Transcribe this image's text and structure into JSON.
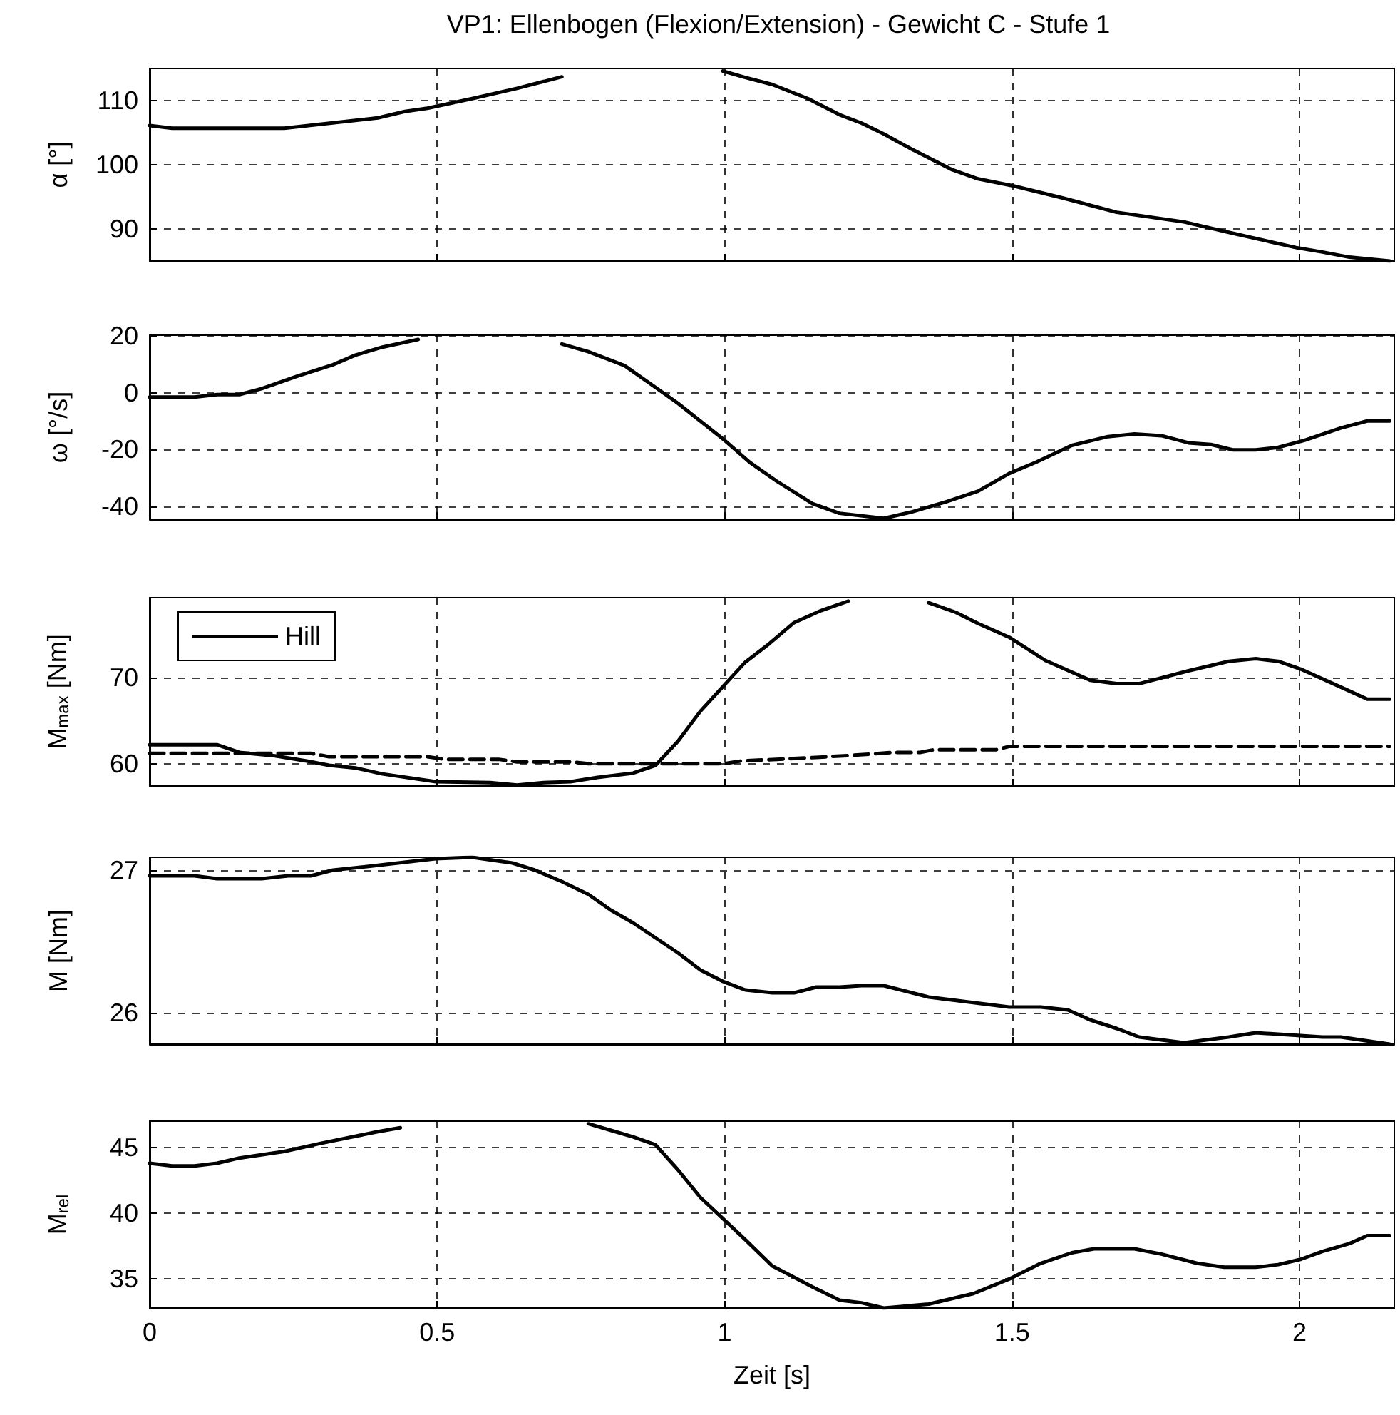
{
  "chart_data": [
    {
      "type": "line",
      "title": "VP1: Ellenbogen (Flexion/Extension) - Gewicht C - Stufe 1",
      "ylabel": "α [°]",
      "xlim": [
        0,
        2.165
      ],
      "xticks": [
        0,
        0.5,
        1,
        1.5,
        2
      ],
      "ylim": [
        85,
        115
      ],
      "yticks": [
        90,
        100,
        110
      ],
      "tick_labels": "y",
      "grid": true,
      "legend": false,
      "marker": "none",
      "line_style": "solid",
      "x": [
        0,
        0.039,
        0.234,
        0.296,
        0.397,
        0.444,
        0.483,
        0.561,
        0.639,
        0.717,
        0.826,
        0.919,
        0.997,
        1.036,
        1.083,
        1.145,
        1.2,
        1.238,
        1.277,
        1.324,
        1.394,
        1.441,
        1.503,
        1.589,
        1.682,
        1.799,
        1.885,
        1.994,
        2.04,
        2.087,
        2.157
      ],
      "series": [
        {
          "color": "#000000",
          "values": [
            106.1,
            105.7,
            105.7,
            106.3,
            107.3,
            108.3,
            108.8,
            110.3,
            111.9,
            113.7,
            null,
            null,
            114.6,
            113.6,
            112.5,
            110.3,
            107.8,
            106.5,
            104.8,
            102.5,
            99.3,
            97.8,
            96.7,
            94.8,
            92.6,
            91.1,
            89.3,
            87.1,
            86.4,
            85.6,
            85
          ]
        }
      ]
    },
    {
      "type": "line",
      "ylabel": "ω [°/s]",
      "xlim": [
        0,
        2.165
      ],
      "xticks": [
        0,
        0.5,
        1,
        1.5,
        2
      ],
      "ylim": [
        -44.5,
        20.3
      ],
      "yticks": [
        -40,
        -20,
        0,
        20
      ],
      "tick_labels": "y",
      "grid": true,
      "legend": false,
      "marker": "none",
      "line_style": "solid",
      "x": [
        0,
        0.078,
        0.117,
        0.156,
        0.195,
        0.257,
        0.319,
        0.358,
        0.405,
        0.467,
        0.514,
        0.639,
        0.717,
        0.763,
        0.826,
        0.88,
        0.919,
        1.0,
        1.044,
        1.09,
        1.153,
        1.2,
        1.277,
        1.324,
        1.386,
        1.441,
        1.495,
        1.542,
        1.604,
        1.667,
        1.713,
        1.76,
        1.807,
        1.846,
        1.885,
        1.924,
        1.963,
        2.009,
        2.072,
        2.118,
        2.157
      ],
      "series": [
        {
          "color": "#000000",
          "values": [
            -1.5,
            -1.5,
            -0.6,
            -0.6,
            1.5,
            5.9,
            9.9,
            13.3,
            16.1,
            18.8,
            null,
            null,
            17.2,
            14.5,
            9.6,
            1.9,
            -3.7,
            -16.7,
            -24.5,
            -31,
            -39,
            -42.4,
            -44.2,
            -42,
            -38.3,
            -34.6,
            -28.4,
            -24.4,
            -18.5,
            -15.4,
            -14.5,
            -15.1,
            -17.6,
            -18.2,
            -20.1,
            -20.1,
            -19.2,
            -16.7,
            -12.4,
            -9.9,
            -9.9
          ]
        }
      ]
    },
    {
      "type": "line",
      "ylabel": "M$_{max}$ [Nm]",
      "xlim": [
        0,
        2.165
      ],
      "xticks": [
        0,
        0.5,
        1,
        1.5,
        2
      ],
      "ylim": [
        57.4,
        79.3
      ],
      "yticks": [
        60,
        70
      ],
      "tick_labels": "y",
      "grid": true,
      "legend": "top left",
      "marker": "none",
      "series": [
        {
          "name": "Hill",
          "color": "#000000",
          "line_style": "solid",
          "x": [
            0,
            0.117,
            0.156,
            0.218,
            0.273,
            0.312,
            0.358,
            0.405,
            0.498,
            0.592,
            0.639,
            0.685,
            0.732,
            0.779,
            0.841,
            0.88,
            0.919,
            0.958,
            1.036,
            1.075,
            1.121,
            1.168,
            1.215,
            1.254,
            1.324,
            1.355,
            1.402,
            1.441,
            1.495,
            1.558,
            1.636,
            1.682,
            1.721,
            1.807,
            1.877,
            1.924,
            1.963,
            2.002,
            2.072,
            2.118,
            2.157
          ],
          "values": [
            62.2,
            62.2,
            61.3,
            60.9,
            60.3,
            59.8,
            59.5,
            58.8,
            57.9,
            57.8,
            57.5,
            57.8,
            57.9,
            58.4,
            58.9,
            59.8,
            62.6,
            66.1,
            71.8,
            73.8,
            76.4,
            77.8,
            78.9,
            null,
            null,
            78.7,
            77.6,
            76.3,
            74.7,
            72,
            69.7,
            69.3,
            69.3,
            70.8,
            71.9,
            72.2,
            71.9,
            71,
            68.9,
            67.5,
            67.5
          ]
        },
        {
          "color": "#000000",
          "line_style": "dashed",
          "x": [
            0,
            0.117,
            0.28,
            0.312,
            0.483,
            0.514,
            0.607,
            0.639,
            0.732,
            0.763,
            1.0,
            1.028,
            1.09,
            1.153,
            1.231,
            1.293,
            1.34,
            1.363,
            1.472,
            1.495,
            2.157
          ],
          "values": [
            61.2,
            61.2,
            61.2,
            60.8,
            60.8,
            60.5,
            60.5,
            60.2,
            60.2,
            60,
            60,
            60.3,
            60.5,
            60.7,
            61,
            61.3,
            61.3,
            61.6,
            61.6,
            62,
            62
          ]
        }
      ]
    },
    {
      "type": "line",
      "ylabel": "M [Nm]",
      "xlim": [
        0,
        2.165
      ],
      "xticks": [
        0,
        0.5,
        1,
        1.5,
        2
      ],
      "ylim": [
        25.78,
        27.09
      ],
      "yticks": [
        26,
        27
      ],
      "tick_labels": "y",
      "grid": true,
      "legend": false,
      "marker": "none",
      "line_style": "solid",
      "x": [
        0,
        0.078,
        0.117,
        0.195,
        0.241,
        0.28,
        0.319,
        0.389,
        0.497,
        0.561,
        0.631,
        0.67,
        0.717,
        0.763,
        0.802,
        0.841,
        0.919,
        0.958,
        0.997,
        1.036,
        1.083,
        1.121,
        1.16,
        1.2,
        1.238,
        1.277,
        1.355,
        1.495,
        1.55,
        1.597,
        1.636,
        1.682,
        1.721,
        1.799,
        1.838,
        1.877,
        1.924,
        1.963,
        2.04,
        2.072,
        2.157
      ],
      "series": [
        {
          "color": "#000000",
          "values": [
            26.96,
            26.96,
            26.94,
            26.94,
            26.96,
            26.96,
            27.0,
            27.03,
            27.08,
            27.09,
            27.05,
            27.0,
            26.92,
            26.83,
            26.72,
            26.63,
            26.42,
            26.3,
            26.22,
            26.16,
            26.14,
            26.14,
            26.18,
            26.18,
            26.19,
            26.19,
            26.11,
            26.04,
            26.04,
            26.02,
            25.95,
            25.89,
            25.83,
            25.79,
            25.81,
            25.83,
            25.86,
            25.85,
            25.83,
            25.83,
            25.78
          ]
        }
      ]
    },
    {
      "type": "line",
      "ylabel": "M$_{rel}$",
      "xlabel": "Zeit [s]",
      "xlim": [
        0,
        2.165
      ],
      "xticks": [
        0,
        0.5,
        1,
        1.5,
        2
      ],
      "ylim": [
        32.8,
        47
      ],
      "yticks": [
        35,
        40,
        45
      ],
      "grid": true,
      "legend": false,
      "marker": "none",
      "line_style": "solid",
      "x": [
        0,
        0.039,
        0.078,
        0.117,
        0.156,
        0.234,
        0.296,
        0.397,
        0.436,
        0.497,
        0.732,
        0.763,
        0.81,
        0.841,
        0.88,
        0.919,
        0.958,
        1.036,
        1.083,
        1.153,
        1.2,
        1.238,
        1.277,
        1.355,
        1.433,
        1.495,
        1.55,
        1.604,
        1.643,
        1.713,
        1.76,
        1.822,
        1.869,
        1.924,
        1.963,
        2.002,
        2.04,
        2.087,
        2.118,
        2.157
      ],
      "series": [
        {
          "color": "#000000",
          "values": [
            43.8,
            43.6,
            43.6,
            43.8,
            44.2,
            44.7,
            45.3,
            46.2,
            46.5,
            null,
            null,
            46.8,
            46.2,
            45.8,
            45.2,
            43.3,
            41.2,
            38,
            36,
            34.4,
            33.4,
            33.2,
            32.8,
            33.1,
            33.9,
            35,
            36.2,
            37,
            37.3,
            37.3,
            36.9,
            36.2,
            35.9,
            35.9,
            36.1,
            36.5,
            37.1,
            37.7,
            38.3,
            38.3
          ]
        }
      ]
    }
  ]
}
